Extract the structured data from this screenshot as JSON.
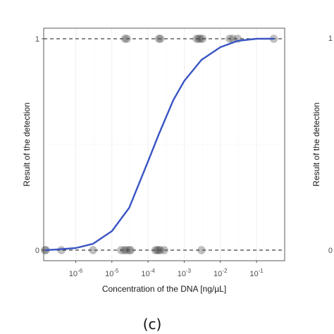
{
  "chart_data": [
    {
      "type": "scatter",
      "title": "",
      "xlabel": "Concentration of the DNA [ng/µL]",
      "ylabel": "Result of the detection",
      "x_scale": "log10",
      "xlim": [
        1.3e-07,
        0.6
      ],
      "ylim": [
        -0.05,
        1.05
      ],
      "x_ticks": [
        {
          "value": 1e-06,
          "base": "10",
          "exp": "-6"
        },
        {
          "value": 1e-05,
          "base": "10",
          "exp": "-5"
        },
        {
          "value": 0.0001,
          "base": "10",
          "exp": "-4"
        },
        {
          "value": 0.001,
          "base": "10",
          "exp": "-3"
        },
        {
          "value": 0.01,
          "base": "10",
          "exp": "-2"
        },
        {
          "value": 0.1,
          "base": "10",
          "exp": "-1"
        }
      ],
      "y_ticks": [
        {
          "value": 0,
          "label": "0"
        },
        {
          "value": 1,
          "label": "1"
        }
      ],
      "reference_lines": [
        0,
        1
      ],
      "grid": true,
      "points": [
        {
          "x": 1.4e-07,
          "y": 0
        },
        {
          "x": 1.5e-07,
          "y": 0
        },
        {
          "x": 4e-07,
          "y": 0
        },
        {
          "x": 3e-06,
          "y": 0
        },
        {
          "x": 1.8e-05,
          "y": 0
        },
        {
          "x": 2.2e-05,
          "y": 0
        },
        {
          "x": 2.5e-05,
          "y": 0
        },
        {
          "x": 3e-05,
          "y": 0
        },
        {
          "x": 3.3e-05,
          "y": 0
        },
        {
          "x": 0.00016,
          "y": 0
        },
        {
          "x": 0.00018,
          "y": 0
        },
        {
          "x": 0.0002,
          "y": 0
        },
        {
          "x": 0.00022,
          "y": 0
        },
        {
          "x": 0.00028,
          "y": 0
        },
        {
          "x": 0.003,
          "y": 0
        },
        {
          "x": 2.3e-05,
          "y": 1
        },
        {
          "x": 2.6e-05,
          "y": 1
        },
        {
          "x": 0.0002,
          "y": 1
        },
        {
          "x": 0.00022,
          "y": 1
        },
        {
          "x": 0.0022,
          "y": 1
        },
        {
          "x": 0.0025,
          "y": 1
        },
        {
          "x": 0.0028,
          "y": 1
        },
        {
          "x": 0.0032,
          "y": 1
        },
        {
          "x": 0.018,
          "y": 1
        },
        {
          "x": 0.022,
          "y": 1
        },
        {
          "x": 0.03,
          "y": 1
        },
        {
          "x": 0.3,
          "y": 1
        }
      ],
      "fit": {
        "kind": "logistic",
        "line_color": "#3a55c4",
        "x": [
          1.5e-07,
          3e-07,
          1e-06,
          3e-06,
          1e-05,
          3e-05,
          0.0001,
          0.0002,
          0.0005,
          0.001,
          0.003,
          0.01,
          0.03,
          0.1,
          0.3
        ],
        "y": [
          0.0,
          0.003,
          0.01,
          0.03,
          0.09,
          0.2,
          0.42,
          0.55,
          0.71,
          0.8,
          0.9,
          0.96,
          0.99,
          1.0,
          1.0
        ]
      }
    }
  ],
  "caption": "(c)",
  "second_panel": {
    "ylabel": "Result of the detection",
    "y_tick_top": "1",
    "y_tick_bottom": "0"
  }
}
